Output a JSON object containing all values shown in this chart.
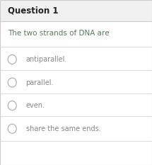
{
  "title": "Question 1",
  "title_fontsize": 8.5,
  "title_bold": true,
  "title_bg_color": "#f0f0f0",
  "body_bg_color": "#ffffff",
  "question_text": "The two strands of DNA are",
  "question_fontsize": 7.5,
  "question_color": "#5a7a5a",
  "options": [
    "antiparallel.",
    "parallel.",
    "even.",
    "share the same ends."
  ],
  "option_fontsize": 7.0,
  "option_color": "#888888",
  "circle_color": "#aaaaaa",
  "divider_color": "#cccccc",
  "border_color": "#cccccc"
}
